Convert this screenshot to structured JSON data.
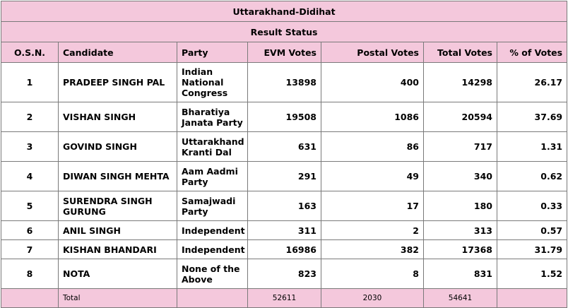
{
  "title": "Uttarakhand-Didihat",
  "subtitle": "Result Status",
  "columns": [
    "O.S.N.",
    "Candidate",
    "Party",
    "EVM Votes",
    "Postal Votes",
    "Total Votes",
    "% of Votes"
  ],
  "rows": [
    {
      "osn": "1",
      "candidate": "PRADEEP SINGH PAL",
      "party": "Indian National Congress",
      "evm": "13898",
      "postal": "400",
      "total": "14298",
      "percent": "26.17"
    },
    {
      "osn": "2",
      "candidate": "VISHAN SINGH",
      "party": "Bharatiya Janata Party",
      "evm": "19508",
      "postal": "1086",
      "total": "20594",
      "percent": "37.69"
    },
    {
      "osn": "3",
      "candidate": "GOVIND SINGH",
      "party": "Uttarakhand Kranti Dal",
      "evm": "631",
      "postal": "86",
      "total": "717",
      "percent": "1.31"
    },
    {
      "osn": "4",
      "candidate": "DIWAN SINGH MEHTA",
      "party": "Aam Aadmi Party",
      "evm": "291",
      "postal": "49",
      "total": "340",
      "percent": "0.62"
    },
    {
      "osn": "5",
      "candidate": "SURENDRA SINGH GURUNG",
      "party": "Samajwadi Party",
      "evm": "163",
      "postal": "17",
      "total": "180",
      "percent": "0.33"
    },
    {
      "osn": "6",
      "candidate": "ANIL SINGH",
      "party": "Independent",
      "evm": "311",
      "postal": "2",
      "total": "313",
      "percent": "0.57"
    },
    {
      "osn": "7",
      "candidate": "KISHAN BHANDARI",
      "party": "Independent",
      "evm": "16986",
      "postal": "382",
      "total": "17368",
      "percent": "31.79"
    },
    {
      "osn": "8",
      "candidate": "NOTA",
      "party": "None of the Above",
      "evm": "823",
      "postal": "8",
      "total": "831",
      "percent": "1.52"
    }
  ],
  "totals": {
    "label": "Total",
    "evm": "52611",
    "postal": "2030",
    "total": "54641"
  }
}
